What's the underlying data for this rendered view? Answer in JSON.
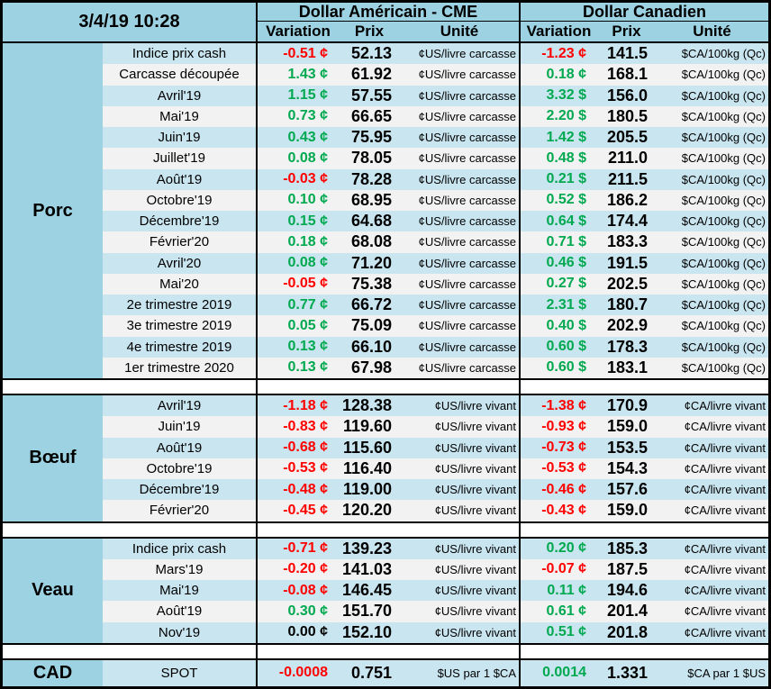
{
  "meta": {
    "timestamp": "3/4/19 10:28"
  },
  "header": {
    "us_title": "Dollar Américain - CME",
    "ca_title": "Dollar Canadien",
    "variation": "Variation",
    "prix": "Prix",
    "unite": "Unité"
  },
  "colors": {
    "header_bg": "#9CD2E2",
    "section_bg": "#9CD2E2",
    "row_blue": "#C9E5F0",
    "row_alt": "#F2F2F2",
    "up": "#00A94F",
    "down": "#FF0000",
    "flat": "#000000"
  },
  "sections": [
    {
      "name": "Porc",
      "rows": [
        {
          "label": "Indice prix cash",
          "us": {
            "var": "-0.51 ¢",
            "dir": "down",
            "prix": "52.13",
            "unit": "¢US/livre carcasse"
          },
          "ca": {
            "var": "-1.23 ¢",
            "dir": "down",
            "prix": "141.5",
            "unit": "$CA/100kg (Qc)"
          }
        },
        {
          "label": "Carcasse découpée",
          "us": {
            "var": "1.43 ¢",
            "dir": "up",
            "prix": "61.92",
            "unit": "¢US/livre carcasse"
          },
          "ca": {
            "var": "0.18 ¢",
            "dir": "up",
            "prix": "168.1",
            "unit": "$CA/100kg (Qc)"
          }
        },
        {
          "label": "Avril'19",
          "us": {
            "var": "1.15 ¢",
            "dir": "up",
            "prix": "57.55",
            "unit": "¢US/livre carcasse"
          },
          "ca": {
            "var": "3.32 $",
            "dir": "up",
            "prix": "156.0",
            "unit": "$CA/100kg (Qc)"
          }
        },
        {
          "label": "Mai'19",
          "us": {
            "var": "0.73 ¢",
            "dir": "up",
            "prix": "66.65",
            "unit": "¢US/livre carcasse"
          },
          "ca": {
            "var": "2.20 $",
            "dir": "up",
            "prix": "180.5",
            "unit": "$CA/100kg (Qc)"
          }
        },
        {
          "label": "Juin'19",
          "us": {
            "var": "0.43 ¢",
            "dir": "up",
            "prix": "75.95",
            "unit": "¢US/livre carcasse"
          },
          "ca": {
            "var": "1.42 $",
            "dir": "up",
            "prix": "205.5",
            "unit": "$CA/100kg (Qc)"
          }
        },
        {
          "label": "Juillet'19",
          "us": {
            "var": "0.08 ¢",
            "dir": "up",
            "prix": "78.05",
            "unit": "¢US/livre carcasse"
          },
          "ca": {
            "var": "0.48 $",
            "dir": "up",
            "prix": "211.0",
            "unit": "$CA/100kg (Qc)"
          }
        },
        {
          "label": "Août'19",
          "us": {
            "var": "-0.03 ¢",
            "dir": "down",
            "prix": "78.28",
            "unit": "¢US/livre carcasse"
          },
          "ca": {
            "var": "0.21 $",
            "dir": "up",
            "prix": "211.5",
            "unit": "$CA/100kg (Qc)"
          }
        },
        {
          "label": "Octobre'19",
          "us": {
            "var": "0.10 ¢",
            "dir": "up",
            "prix": "68.95",
            "unit": "¢US/livre carcasse"
          },
          "ca": {
            "var": "0.52 $",
            "dir": "up",
            "prix": "186.2",
            "unit": "$CA/100kg (Qc)"
          }
        },
        {
          "label": "Décembre'19",
          "us": {
            "var": "0.15 ¢",
            "dir": "up",
            "prix": "64.68",
            "unit": "¢US/livre carcasse"
          },
          "ca": {
            "var": "0.64 $",
            "dir": "up",
            "prix": "174.4",
            "unit": "$CA/100kg (Qc)"
          }
        },
        {
          "label": "Février'20",
          "us": {
            "var": "0.18 ¢",
            "dir": "up",
            "prix": "68.08",
            "unit": "¢US/livre carcasse"
          },
          "ca": {
            "var": "0.71 $",
            "dir": "up",
            "prix": "183.3",
            "unit": "$CA/100kg (Qc)"
          }
        },
        {
          "label": "Avril'20",
          "us": {
            "var": "0.08 ¢",
            "dir": "up",
            "prix": "71.20",
            "unit": "¢US/livre carcasse"
          },
          "ca": {
            "var": "0.46 $",
            "dir": "up",
            "prix": "191.5",
            "unit": "$CA/100kg (Qc)"
          }
        },
        {
          "label": "Mai'20",
          "us": {
            "var": "-0.05 ¢",
            "dir": "down",
            "prix": "75.38",
            "unit": "¢US/livre carcasse"
          },
          "ca": {
            "var": "0.27 $",
            "dir": "up",
            "prix": "202.5",
            "unit": "$CA/100kg (Qc)"
          }
        },
        {
          "label": "2e trimestre 2019",
          "us": {
            "var": "0.77 ¢",
            "dir": "up",
            "prix": "66.72",
            "unit": "¢US/livre carcasse"
          },
          "ca": {
            "var": "2.31 $",
            "dir": "up",
            "prix": "180.7",
            "unit": "$CA/100kg (Qc)"
          }
        },
        {
          "label": "3e trimestre 2019",
          "us": {
            "var": "0.05 ¢",
            "dir": "up",
            "prix": "75.09",
            "unit": "¢US/livre carcasse"
          },
          "ca": {
            "var": "0.40 $",
            "dir": "up",
            "prix": "202.9",
            "unit": "$CA/100kg (Qc)"
          }
        },
        {
          "label": "4e trimestre 2019",
          "us": {
            "var": "0.13 ¢",
            "dir": "up",
            "prix": "66.10",
            "unit": "¢US/livre carcasse"
          },
          "ca": {
            "var": "0.60 $",
            "dir": "up",
            "prix": "178.3",
            "unit": "$CA/100kg (Qc)"
          }
        },
        {
          "label": "1er trimestre 2020",
          "us": {
            "var": "0.13 ¢",
            "dir": "up",
            "prix": "67.98",
            "unit": "¢US/livre carcasse"
          },
          "ca": {
            "var": "0.60 $",
            "dir": "up",
            "prix": "183.1",
            "unit": "$CA/100kg (Qc)"
          }
        }
      ]
    },
    {
      "name": "Bœuf",
      "rows": [
        {
          "label": "Avril'19",
          "us": {
            "var": "-1.18 ¢",
            "dir": "down",
            "prix": "128.38",
            "unit": "¢US/livre vivant"
          },
          "ca": {
            "var": "-1.38 ¢",
            "dir": "down",
            "prix": "170.9",
            "unit": "¢CA/livre vivant"
          }
        },
        {
          "label": "Juin'19",
          "us": {
            "var": "-0.83 ¢",
            "dir": "down",
            "prix": "119.60",
            "unit": "¢US/livre vivant"
          },
          "ca": {
            "var": "-0.93 ¢",
            "dir": "down",
            "prix": "159.0",
            "unit": "¢CA/livre vivant"
          }
        },
        {
          "label": "Août'19",
          "us": {
            "var": "-0.68 ¢",
            "dir": "down",
            "prix": "115.60",
            "unit": "¢US/livre vivant"
          },
          "ca": {
            "var": "-0.73 ¢",
            "dir": "down",
            "prix": "153.5",
            "unit": "¢CA/livre vivant"
          }
        },
        {
          "label": "Octobre'19",
          "us": {
            "var": "-0.53 ¢",
            "dir": "down",
            "prix": "116.40",
            "unit": "¢US/livre vivant"
          },
          "ca": {
            "var": "-0.53 ¢",
            "dir": "down",
            "prix": "154.3",
            "unit": "¢CA/livre vivant"
          }
        },
        {
          "label": "Décembre'19",
          "us": {
            "var": "-0.48 ¢",
            "dir": "down",
            "prix": "119.00",
            "unit": "¢US/livre vivant"
          },
          "ca": {
            "var": "-0.46 ¢",
            "dir": "down",
            "prix": "157.6",
            "unit": "¢CA/livre vivant"
          }
        },
        {
          "label": "Février'20",
          "us": {
            "var": "-0.45 ¢",
            "dir": "down",
            "prix": "120.20",
            "unit": "¢US/livre vivant"
          },
          "ca": {
            "var": "-0.43 ¢",
            "dir": "down",
            "prix": "159.0",
            "unit": "¢CA/livre vivant"
          }
        }
      ]
    },
    {
      "name": "Veau",
      "rows": [
        {
          "label": "Indice prix cash",
          "us": {
            "var": "-0.71 ¢",
            "dir": "down",
            "prix": "139.23",
            "unit": "¢US/livre vivant"
          },
          "ca": {
            "var": "0.20 ¢",
            "dir": "up",
            "prix": "185.3",
            "unit": "¢CA/livre vivant"
          }
        },
        {
          "label": "Mars'19",
          "us": {
            "var": "-0.20 ¢",
            "dir": "down",
            "prix": "141.03",
            "unit": "¢US/livre vivant"
          },
          "ca": {
            "var": "-0.07 ¢",
            "dir": "down",
            "prix": "187.5",
            "unit": "¢CA/livre vivant"
          }
        },
        {
          "label": "Mai'19",
          "us": {
            "var": "-0.08 ¢",
            "dir": "down",
            "prix": "146.45",
            "unit": "¢US/livre vivant"
          },
          "ca": {
            "var": "0.11 ¢",
            "dir": "up",
            "prix": "194.6",
            "unit": "¢CA/livre vivant"
          }
        },
        {
          "label": "Août'19",
          "us": {
            "var": "0.30 ¢",
            "dir": "up",
            "prix": "151.70",
            "unit": "¢US/livre vivant"
          },
          "ca": {
            "var": "0.61 ¢",
            "dir": "up",
            "prix": "201.4",
            "unit": "¢CA/livre vivant"
          }
        },
        {
          "label": "Nov'19",
          "us": {
            "var": "0.00 ¢",
            "dir": "flat",
            "prix": "152.10",
            "unit": "¢US/livre vivant"
          },
          "ca": {
            "var": "0.51 ¢",
            "dir": "up",
            "prix": "201.8",
            "unit": "¢CA/livre vivant"
          }
        }
      ]
    },
    {
      "name": "CAD",
      "cad": true,
      "rows": [
        {
          "label": "SPOT",
          "us": {
            "var": "-0.0008",
            "dir": "down",
            "prix": "0.751",
            "unit": "$US par 1 $CA"
          },
          "ca": {
            "var": "0.0014",
            "dir": "up",
            "prix": "1.331",
            "unit": "$CA par 1 $US"
          }
        }
      ]
    }
  ]
}
